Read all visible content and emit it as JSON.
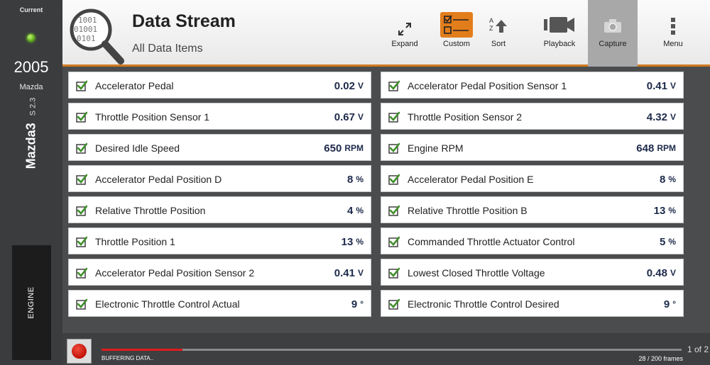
{
  "vehicle": {
    "status_label": "Current",
    "year": "2005",
    "make": "Mazda",
    "model": "Mazda3",
    "engine_code": "S 2.3",
    "system": "ENGINE"
  },
  "header": {
    "title": "Data Stream",
    "subtitle": "All Data Items",
    "accent_color": "#d07a1e"
  },
  "toolbar": {
    "expand": "Expand",
    "custom": "Custom",
    "sort": "Sort",
    "sort_glyph_a": "A",
    "sort_glyph_z": "Z",
    "playback": "Playback",
    "capture": "Capture",
    "menu": "Menu"
  },
  "pids": [
    {
      "name": "Accelerator Pedal",
      "value": "0.02",
      "unit": "V"
    },
    {
      "name": "Accelerator Pedal Position Sensor 1",
      "value": "0.41",
      "unit": "V"
    },
    {
      "name": "Throttle Position Sensor 1",
      "value": "0.67",
      "unit": "V"
    },
    {
      "name": "Throttle Position Sensor 2",
      "value": "4.32",
      "unit": "V"
    },
    {
      "name": "Desired Idle Speed",
      "value": "650",
      "unit": "RPM"
    },
    {
      "name": "Engine RPM",
      "value": "648",
      "unit": "RPM"
    },
    {
      "name": "Accelerator Pedal Position D",
      "value": "8",
      "unit": "%"
    },
    {
      "name": "Accelerator Pedal Position E",
      "value": "8",
      "unit": "%"
    },
    {
      "name": "Relative Throttle Position",
      "value": "4",
      "unit": "%"
    },
    {
      "name": "Relative Throttle Position B",
      "value": "13",
      "unit": "%"
    },
    {
      "name": "Throttle Position 1",
      "value": "13",
      "unit": "%"
    },
    {
      "name": "Commanded Throttle Actuator Control",
      "value": "5",
      "unit": "%"
    },
    {
      "name": "Accelerator Pedal Position Sensor 2",
      "value": "0.41",
      "unit": "V"
    },
    {
      "name": "Lowest Closed Throttle Voltage",
      "value": "0.48",
      "unit": "V"
    },
    {
      "name": "Electronic Throttle Control Actual",
      "value": "9",
      "unit": "°"
    },
    {
      "name": "Electronic Throttle Control Desired",
      "value": "9",
      "unit": "°"
    }
  ],
  "footer": {
    "buffer_status": "BUFFERING DATA..",
    "frames": "28 / 200",
    "frames_unit": "frames",
    "frames_current": 28,
    "frames_total": 200,
    "page": "1 of 2"
  }
}
